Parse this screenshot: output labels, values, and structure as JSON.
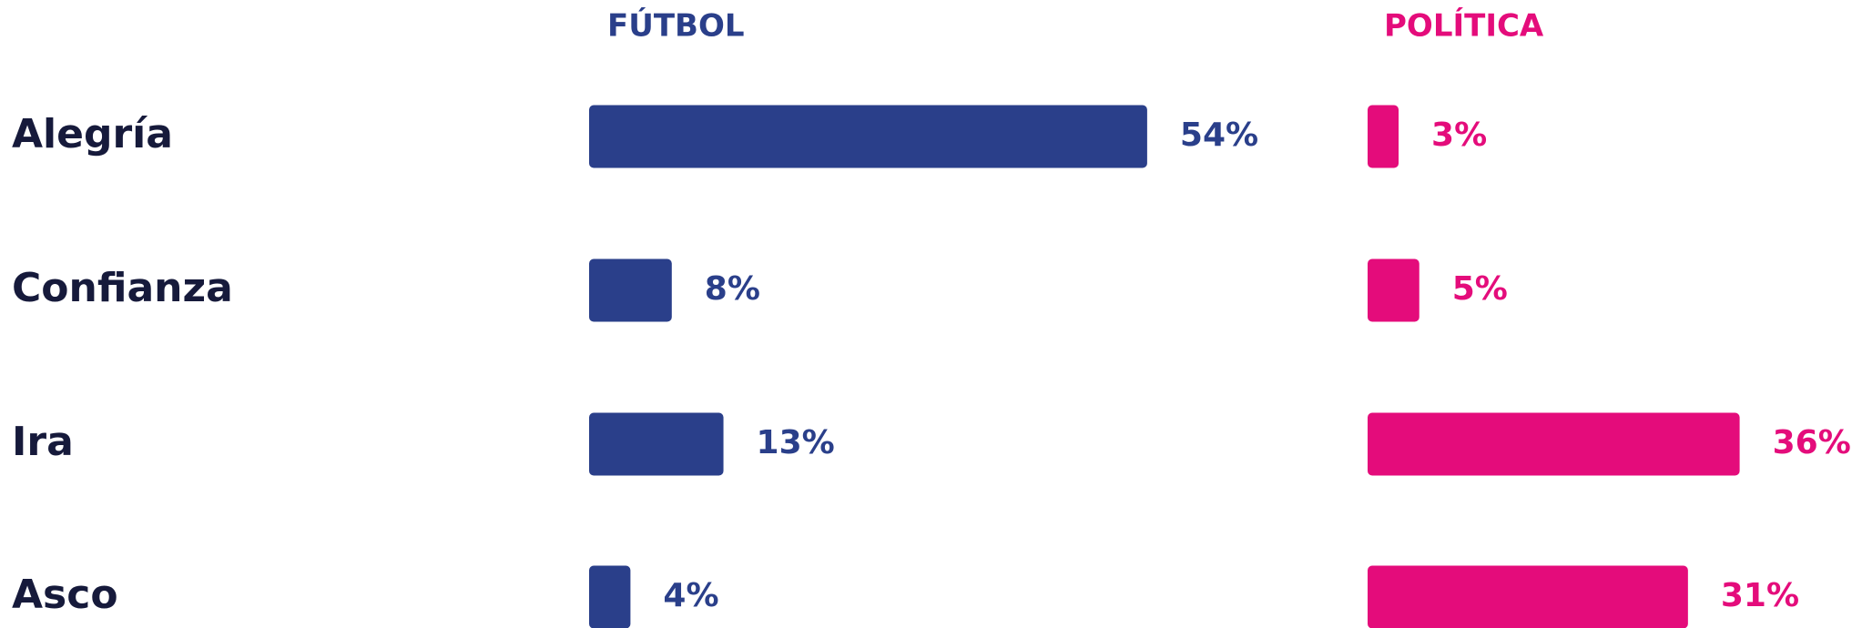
{
  "chart_data": {
    "type": "bar",
    "categories": [
      "Alegría",
      "Confianza",
      "Ira",
      "Asco"
    ],
    "series": [
      {
        "name": "FÚTBOL",
        "color": "#2a3f8a",
        "values": [
          54,
          8,
          13,
          4
        ],
        "value_labels": [
          "54%",
          "8%",
          "13%",
          "4%"
        ]
      },
      {
        "name": "POLÍTICA",
        "color": "#e40c7b",
        "values": [
          3,
          5,
          36,
          31
        ],
        "value_labels": [
          "3%",
          "5%",
          "36%",
          "31%"
        ]
      }
    ]
  }
}
